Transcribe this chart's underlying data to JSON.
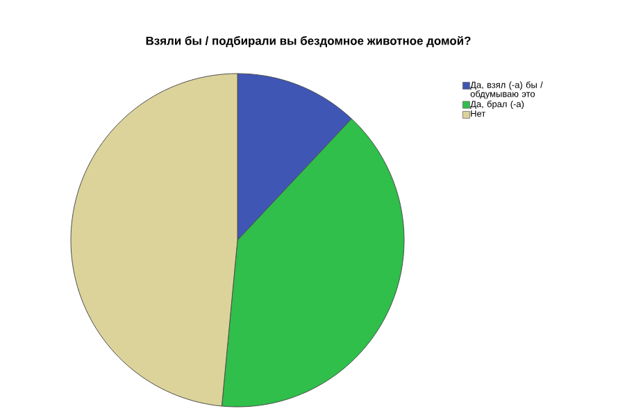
{
  "chart_data": {
    "type": "pie",
    "title": "Взяли бы / подбирали вы бездомное животное домой?",
    "categories": [
      "Да, взял (-а) бы / обдумываю это",
      "Да, брал (-а)",
      "Нет"
    ],
    "values": [
      12,
      39.5,
      48.5
    ],
    "colors": [
      "#3f56b5",
      "#2fbf4a",
      "#dcd39a"
    ],
    "legend": "top right"
  }
}
